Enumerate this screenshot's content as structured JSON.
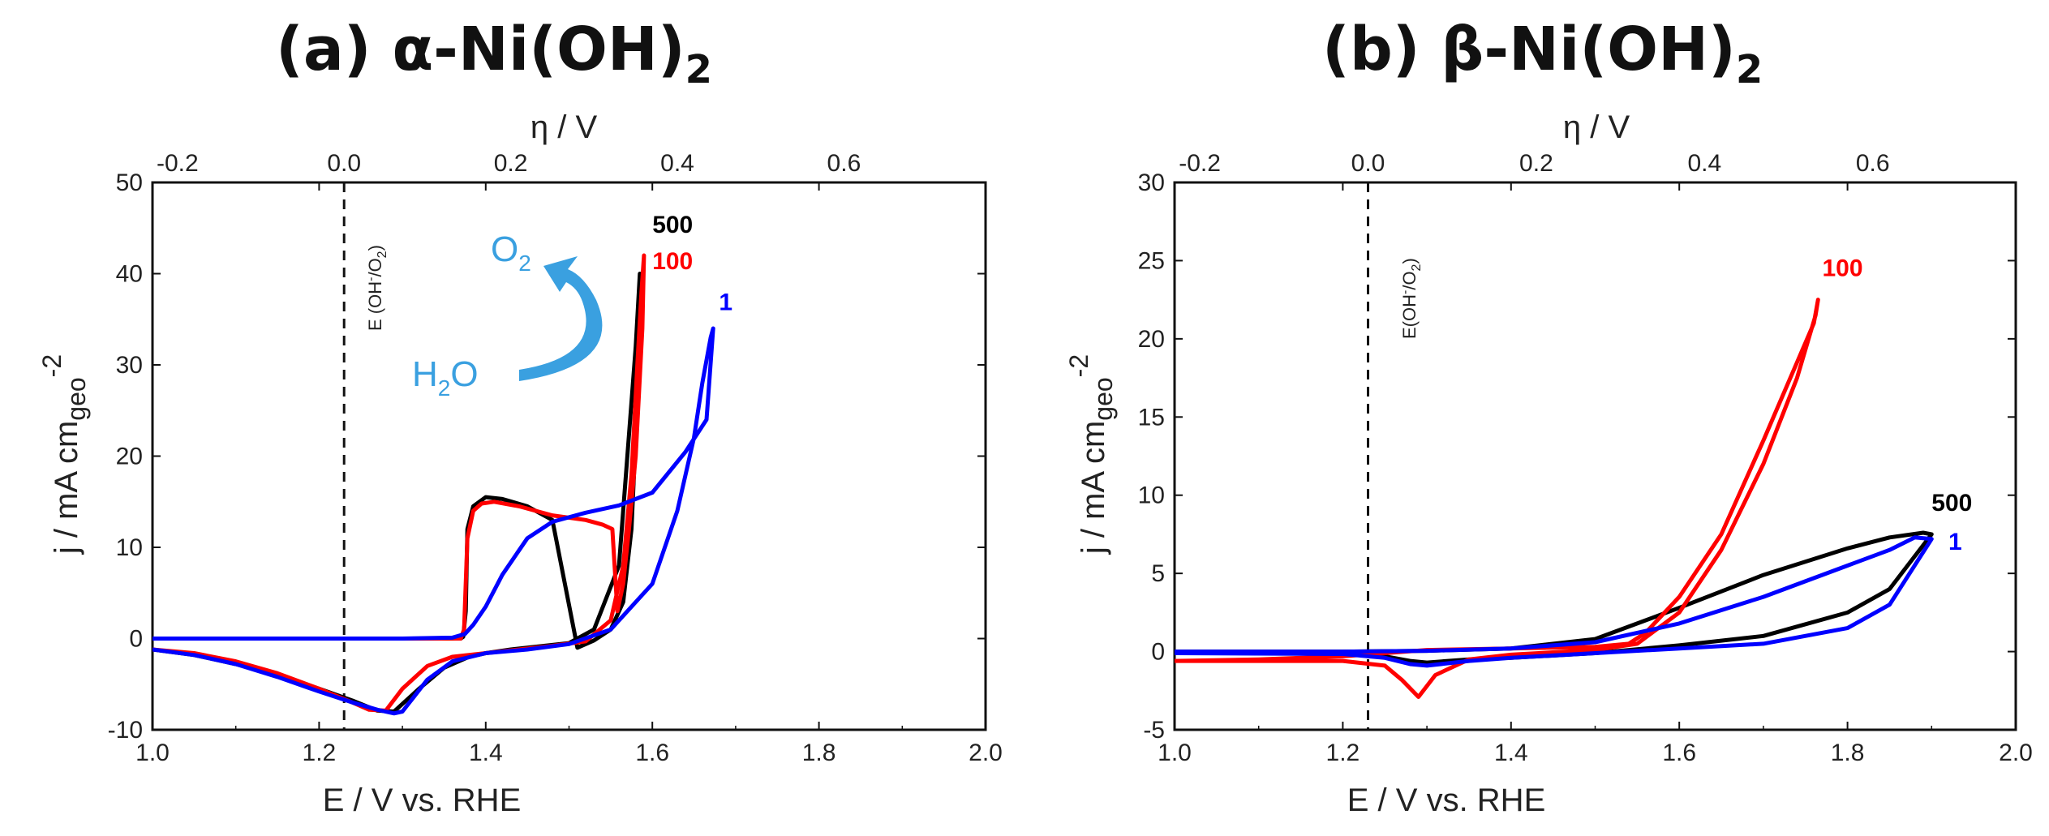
{
  "chart_data": [
    {
      "type": "line",
      "title": "(a) α-Ni(OH)",
      "title_subscript": "2",
      "xlabel": "E / V vs. RHE",
      "ylabel": "j / mA cm",
      "ylabel_sub": "geo",
      "ylabel_sup": "-2",
      "top_xlabel": "η / V",
      "xlim": [
        1.0,
        2.0
      ],
      "ylim": [
        -10,
        50
      ],
      "x_ticks": [
        "1.0",
        "1.2",
        "1.4",
        "1.6",
        "1.8",
        "2.0"
      ],
      "y_ticks": [
        "-10",
        "0",
        "10",
        "20",
        "30",
        "40",
        "50"
      ],
      "top_ticks": [
        "-0.2",
        "0.0",
        "0.2",
        "0.4",
        "0.6"
      ],
      "top_tick_values": [
        -0.2,
        0.0,
        0.2,
        0.4,
        0.6
      ],
      "reference_line": {
        "x": 1.23,
        "label": "E (OH",
        "label_sup": "-",
        "label_end": "/O",
        "label_sub": "2",
        "label_close": ")"
      },
      "annotation": {
        "h2o": "H",
        "h2o_sub": "2",
        "h2o_end": "O",
        "o2": "O",
        "o2_sub": "2"
      },
      "series": [
        {
          "name": "500",
          "color": "#000000",
          "x": [
            1.0,
            1.05,
            1.1,
            1.15,
            1.2,
            1.24,
            1.27,
            1.29,
            1.32,
            1.35,
            1.38,
            1.4,
            1.43,
            1.46,
            1.5,
            1.53,
            1.56,
            1.57,
            1.58,
            1.585,
            1.583,
            1.575,
            1.565,
            1.55,
            1.53,
            1.51,
            1.48,
            1.45,
            1.42,
            1.4,
            1.385,
            1.378,
            1.376,
            1.373,
            1.37,
            1.35,
            1.3,
            1.2,
            1.1,
            1.0
          ],
          "y": [
            -1.2,
            -1.8,
            -2.8,
            -4.0,
            -5.5,
            -6.8,
            -7.9,
            -8.0,
            -5.5,
            -3.2,
            -2.0,
            -1.6,
            -1.2,
            -0.9,
            -0.5,
            1.0,
            8.0,
            20.0,
            32.0,
            40.0,
            28.0,
            12.0,
            4.0,
            1.0,
            -0.2,
            -1.0,
            13.0,
            14.5,
            15.3,
            15.5,
            14.5,
            12.0,
            3.0,
            0.2,
            0.0,
            0.0,
            0.0,
            0.0,
            0.0,
            0.0
          ]
        },
        {
          "name": "100",
          "color": "#ff0000",
          "x": [
            1.0,
            1.05,
            1.1,
            1.15,
            1.2,
            1.24,
            1.26,
            1.28,
            1.3,
            1.33,
            1.36,
            1.4,
            1.44,
            1.48,
            1.52,
            1.55,
            1.565,
            1.575,
            1.582,
            1.587,
            1.59,
            1.588,
            1.58,
            1.572,
            1.565,
            1.558,
            1.552,
            1.54,
            1.52,
            1.48,
            1.44,
            1.41,
            1.395,
            1.385,
            1.378,
            1.374,
            1.37,
            1.35,
            1.3,
            1.2,
            1.1,
            1.0
          ],
          "y": [
            -1.2,
            -1.6,
            -2.5,
            -3.8,
            -5.5,
            -7.0,
            -7.8,
            -7.9,
            -5.5,
            -3.0,
            -2.0,
            -1.6,
            -1.2,
            -0.8,
            -0.3,
            2.0,
            8.0,
            18.0,
            30.0,
            38.0,
            42.0,
            34.0,
            20.0,
            12.0,
            6.0,
            3.0,
            12.0,
            12.5,
            13.0,
            13.5,
            14.5,
            15.0,
            14.8,
            14.0,
            11.0,
            1.0,
            0.0,
            0.0,
            0.0,
            0.0,
            0.0,
            0.0
          ]
        },
        {
          "name": "1",
          "color": "#0000ff",
          "x": [
            1.0,
            1.05,
            1.1,
            1.15,
            1.2,
            1.24,
            1.27,
            1.29,
            1.3,
            1.33,
            1.36,
            1.4,
            1.45,
            1.5,
            1.55,
            1.6,
            1.63,
            1.65,
            1.66,
            1.67,
            1.673,
            1.665,
            1.64,
            1.6,
            1.56,
            1.52,
            1.48,
            1.45,
            1.42,
            1.4,
            1.385,
            1.375,
            1.36,
            1.3,
            1.2,
            1.1,
            1.0
          ],
          "y": [
            -1.2,
            -1.8,
            -2.8,
            -4.2,
            -5.8,
            -7.0,
            -7.8,
            -8.2,
            -8.0,
            -4.5,
            -2.5,
            -1.6,
            -1.2,
            -0.6,
            1.0,
            6.0,
            14.0,
            22.0,
            28.0,
            33.0,
            34.0,
            24.0,
            20.5,
            16.0,
            14.6,
            13.8,
            12.8,
            11.0,
            7.0,
            3.5,
            1.5,
            0.5,
            0.1,
            0.0,
            0.0,
            0.0,
            0.0
          ]
        }
      ],
      "series_labels": [
        {
          "text": "500",
          "color": "#000000",
          "x": 1.6,
          "y": 44.5
        },
        {
          "text": "100",
          "color": "#ff0000",
          "x": 1.6,
          "y": 40.5
        },
        {
          "text": "1",
          "color": "#0000ff",
          "x": 1.68,
          "y": 36.0
        }
      ]
    },
    {
      "type": "line",
      "title": "(b) β-Ni(OH)",
      "title_subscript": "2",
      "xlabel": "E / V vs. RHE",
      "ylabel": "j / mA cm",
      "ylabel_sub": "geo",
      "ylabel_sup": "-2",
      "top_xlabel": "η / V",
      "xlim": [
        1.0,
        2.0
      ],
      "ylim": [
        -5,
        30
      ],
      "x_ticks": [
        "1.0",
        "1.2",
        "1.4",
        "1.6",
        "1.8",
        "2.0"
      ],
      "y_ticks": [
        "-5",
        "0",
        "5",
        "10",
        "15",
        "20",
        "25",
        "30"
      ],
      "top_ticks": [
        "-0.2",
        "0.0",
        "0.2",
        "0.4",
        "0.6"
      ],
      "top_tick_values": [
        -0.2,
        0.0,
        0.2,
        0.4,
        0.6
      ],
      "reference_line": {
        "x": 1.23,
        "label": "E(OH",
        "label_sup": "-",
        "label_end": "/O",
        "label_sub": "2",
        "label_close": ")"
      },
      "series": [
        {
          "name": "500",
          "color": "#000000",
          "x": [
            1.0,
            1.2,
            1.25,
            1.28,
            1.3,
            1.35,
            1.4,
            1.5,
            1.6,
            1.7,
            1.8,
            1.85,
            1.9,
            1.89,
            1.85,
            1.8,
            1.7,
            1.6,
            1.5,
            1.4,
            1.3,
            1.2,
            1.0
          ],
          "y": [
            -0.1,
            -0.1,
            -0.3,
            -0.6,
            -0.7,
            -0.5,
            -0.4,
            -0.1,
            0.4,
            1.0,
            2.5,
            4.0,
            7.5,
            7.6,
            7.3,
            6.6,
            4.9,
            2.8,
            0.8,
            0.2,
            0.05,
            0.0,
            0.0
          ]
        },
        {
          "name": "100",
          "color": "#ff0000",
          "x": [
            1.0,
            1.1,
            1.2,
            1.25,
            1.27,
            1.29,
            1.31,
            1.35,
            1.4,
            1.5,
            1.55,
            1.6,
            1.65,
            1.7,
            1.74,
            1.762,
            1.765,
            1.76,
            1.74,
            1.7,
            1.65,
            1.6,
            1.56,
            1.54,
            1.5,
            1.4,
            1.3,
            1.2,
            1.1,
            1.0
          ],
          "y": [
            -0.6,
            -0.6,
            -0.6,
            -0.9,
            -1.8,
            -2.9,
            -1.5,
            -0.5,
            -0.2,
            0.1,
            0.5,
            2.5,
            6.5,
            12.0,
            17.5,
            21.5,
            22.5,
            21.0,
            18.5,
            13.5,
            7.5,
            3.5,
            1.2,
            0.5,
            0.3,
            0.2,
            0.1,
            -0.3,
            -0.5,
            -0.6
          ]
        },
        {
          "name": "1",
          "color": "#0000ff",
          "x": [
            1.0,
            1.2,
            1.25,
            1.28,
            1.3,
            1.35,
            1.4,
            1.5,
            1.6,
            1.7,
            1.8,
            1.85,
            1.9,
            1.88,
            1.85,
            1.8,
            1.7,
            1.6,
            1.5,
            1.4,
            1.3,
            1.2,
            1.0
          ],
          "y": [
            -0.1,
            -0.15,
            -0.4,
            -0.8,
            -0.9,
            -0.6,
            -0.4,
            -0.1,
            0.2,
            0.5,
            1.5,
            3.0,
            7.2,
            7.3,
            6.5,
            5.5,
            3.5,
            1.8,
            0.6,
            0.2,
            0.05,
            0.0,
            0.0
          ]
        }
      ],
      "series_labels": [
        {
          "text": "100",
          "color": "#ff0000",
          "x": 1.77,
          "y": 24.0
        },
        {
          "text": "500",
          "color": "#000000",
          "x": 1.9,
          "y": 9.0
        },
        {
          "text": "1",
          "color": "#0000ff",
          "x": 1.92,
          "y": 6.5
        }
      ]
    }
  ]
}
